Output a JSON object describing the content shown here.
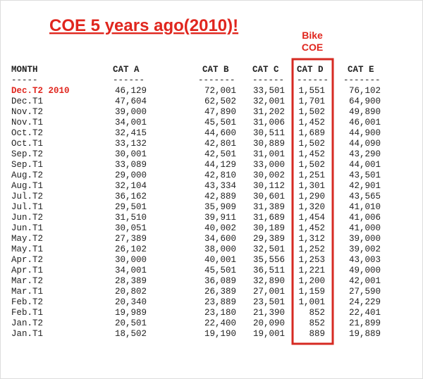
{
  "title": "COE 5 years ago(2010)!",
  "annotation": {
    "lines": [
      "Bike",
      "COE"
    ]
  },
  "table": {
    "headers": [
      "MONTH",
      "CAT A",
      "CAT B",
      "CAT C",
      "CAT D",
      "CAT E"
    ],
    "separators": [
      "-----",
      "------",
      "-------",
      "------",
      "------",
      "-------"
    ],
    "rows": [
      [
        "Dec.T2 2010",
        "46,129",
        "72,001",
        "33,501",
        "1,551",
        "76,102"
      ],
      [
        "Dec.T1",
        "47,604",
        "62,502",
        "32,001",
        "1,701",
        "64,900"
      ],
      [
        "Nov.T2",
        "39,000",
        "47,890",
        "31,202",
        "1,502",
        "49,890"
      ],
      [
        "Nov.T1",
        "34,001",
        "45,501",
        "31,006",
        "1,452",
        "46,001"
      ],
      [
        "Oct.T2",
        "32,415",
        "44,600",
        "30,511",
        "1,689",
        "44,900"
      ],
      [
        "Oct.T1",
        "33,132",
        "42,801",
        "30,889",
        "1,502",
        "44,090"
      ],
      [
        "Sep.T2",
        "30,001",
        "42,501",
        "31,001",
        "1,452",
        "43,290"
      ],
      [
        "Sep.T1",
        "33,089",
        "44,129",
        "33,000",
        "1,502",
        "44,001"
      ],
      [
        "Aug.T2",
        "29,000",
        "42,810",
        "30,002",
        "1,251",
        "43,501"
      ],
      [
        "Aug.T1",
        "32,104",
        "43,334",
        "30,112",
        "1,301",
        "42,901"
      ],
      [
        "Jul.T2",
        "36,162",
        "42,889",
        "30,601",
        "1,290",
        "43,565"
      ],
      [
        "Jul.T1",
        "29,501",
        "35,909",
        "31,389",
        "1,320",
        "41,010"
      ],
      [
        "Jun.T2",
        "31,510",
        "39,911",
        "31,689",
        "1,454",
        "41,006"
      ],
      [
        "Jun.T1",
        "30,051",
        "40,002",
        "30,189",
        "1,452",
        "41,000"
      ],
      [
        "May.T2",
        "27,389",
        "34,600",
        "29,389",
        "1,312",
        "39,000"
      ],
      [
        "May.T1",
        "26,102",
        "38,000",
        "32,501",
        "1,252",
        "39,002"
      ],
      [
        "Apr.T2",
        "30,000",
        "40,001",
        "35,556",
        "1,253",
        "43,003"
      ],
      [
        "Apr.T1",
        "34,001",
        "45,501",
        "36,511",
        "1,221",
        "49,000"
      ],
      [
        "Mar.T2",
        "28,389",
        "36,089",
        "32,890",
        "1,200",
        "42,001"
      ],
      [
        "Mar.T1",
        "20,802",
        "26,389",
        "27,001",
        "1,159",
        "27,590"
      ],
      [
        "Feb.T2",
        "20,340",
        "23,889",
        "23,501",
        "1,001",
        "24,229"
      ],
      [
        "Feb.T1",
        "19,989",
        "23,180",
        "21,390",
        "852",
        "22,401"
      ],
      [
        "Jan.T2",
        "20,501",
        "22,400",
        "20,090",
        "852",
        "21,899"
      ],
      [
        "Jan.T1",
        "18,502",
        "19,190",
        "19,001",
        "889",
        "19,889"
      ]
    ]
  }
}
